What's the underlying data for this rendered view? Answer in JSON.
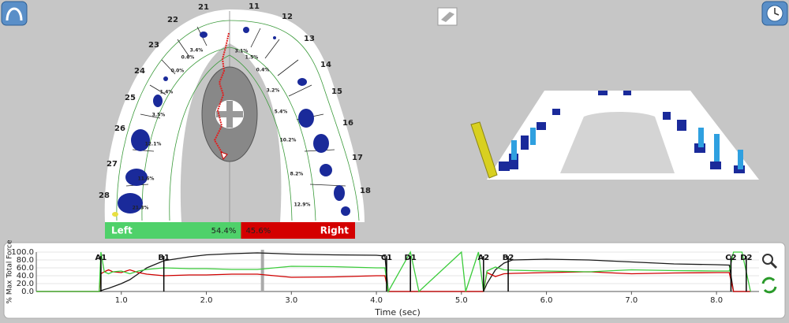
{
  "arch": {
    "teeth": [
      {
        "number": "21",
        "percent": "3.4%"
      },
      {
        "number": "22",
        "percent": "0.6%"
      },
      {
        "number": "23",
        "percent": "0.0%"
      },
      {
        "number": "24",
        "percent": "1.4%"
      },
      {
        "number": "25",
        "percent": "3.5%"
      },
      {
        "number": "26",
        "percent": "12.1%"
      },
      {
        "number": "27",
        "percent": "11.6%"
      },
      {
        "number": "28",
        "percent": "21.3%"
      },
      {
        "number": "11",
        "percent": "3.1%"
      },
      {
        "number": "12",
        "percent": "1.5%"
      },
      {
        "number": "13",
        "percent": "0.4%"
      },
      {
        "number": "14",
        "percent": "3.2%"
      },
      {
        "number": "15",
        "percent": "5.4%"
      },
      {
        "number": "16",
        "percent": "10.2%"
      },
      {
        "number": "17",
        "percent": "8.2%"
      },
      {
        "number": "18",
        "percent": "12.9%"
      }
    ]
  },
  "balance": {
    "left_label": "Left",
    "left": {
      "value": 54.4,
      "label": "54.4%"
    },
    "right_label": "Right",
    "right": {
      "value": 45.6,
      "label": "45.6%"
    }
  },
  "chart_data": {
    "type": "line",
    "ylabel": "% Max Total Force",
    "xlabel": "Time (sec)",
    "xlim": [
      0,
      8.5
    ],
    "ylim": [
      0,
      100
    ],
    "yticks": [
      {
        "value": 0,
        "label": "0.0"
      },
      {
        "value": 20,
        "label": "20.0"
      },
      {
        "value": 40,
        "label": "40.0"
      },
      {
        "value": 60,
        "label": "60.0"
      },
      {
        "value": 80,
        "label": "80.0"
      },
      {
        "value": 100,
        "label": "100.0"
      }
    ],
    "xticks": [
      {
        "value": 1,
        "label": "1.0"
      },
      {
        "value": 2,
        "label": "2.0"
      },
      {
        "value": 3,
        "label": "3.0"
      },
      {
        "value": 4,
        "label": "4.0"
      },
      {
        "value": 5,
        "label": "5.0"
      },
      {
        "value": 6,
        "label": "6.0"
      },
      {
        "value": 7,
        "label": "7.0"
      },
      {
        "value": 8,
        "label": "8.0"
      }
    ],
    "x": [
      0,
      0.74,
      0.76,
      0.8,
      0.85,
      0.9,
      1.0,
      1.1,
      1.2,
      1.3,
      1.5,
      1.8,
      2.0,
      2.3,
      2.6,
      3.0,
      3.5,
      4.0,
      4.1,
      4.14,
      4.4,
      4.5,
      5.0,
      5.05,
      5.2,
      5.26,
      5.3,
      5.4,
      5.5,
      5.6,
      6.0,
      6.5,
      7.0,
      7.5,
      8.0,
      8.15,
      8.2,
      8.3,
      8.4
    ],
    "series": [
      {
        "color": "#1a1a1a",
        "values": [
          0,
          0,
          2,
          5,
          8,
          12,
          20,
          30,
          45,
          60,
          78,
          88,
          93,
          96,
          98,
          95,
          93,
          92,
          90,
          0,
          0,
          0,
          0,
          0,
          0,
          0,
          20,
          55,
          72,
          80,
          82,
          80,
          75,
          70,
          68,
          67,
          0,
          0,
          0
        ]
      },
      {
        "color": "#d00000",
        "values": [
          0,
          0,
          45,
          50,
          55,
          50,
          48,
          55,
          48,
          44,
          40,
          42,
          42,
          44,
          44,
          36,
          37,
          40,
          40,
          0,
          0,
          0,
          0,
          0,
          0,
          0,
          48,
          38,
          45,
          46,
          48,
          50,
          45,
          47,
          48,
          48,
          0,
          0,
          0
        ]
      },
      {
        "color": "#3ccc3c",
        "values": [
          0,
          0,
          100,
          50,
          45,
          50,
          52,
          45,
          52,
          56,
          60,
          58,
          58,
          56,
          56,
          64,
          63,
          60,
          60,
          0,
          100,
          0,
          100,
          0,
          100,
          0,
          52,
          62,
          55,
          54,
          52,
          50,
          55,
          53,
          52,
          52,
          100,
          100,
          0
        ]
      }
    ],
    "cursor_x": 2.66,
    "markers": [
      {
        "label": "A1",
        "x": 0.76
      },
      {
        "label": "B1",
        "x": 1.5
      },
      {
        "label": "C1",
        "x": 4.12
      },
      {
        "label": "D1",
        "x": 4.4
      },
      {
        "label": "A2",
        "x": 5.26
      },
      {
        "label": "B2",
        "x": 5.55
      },
      {
        "label": "C2",
        "x": 8.17
      },
      {
        "label": "D2",
        "x": 8.35
      }
    ]
  }
}
